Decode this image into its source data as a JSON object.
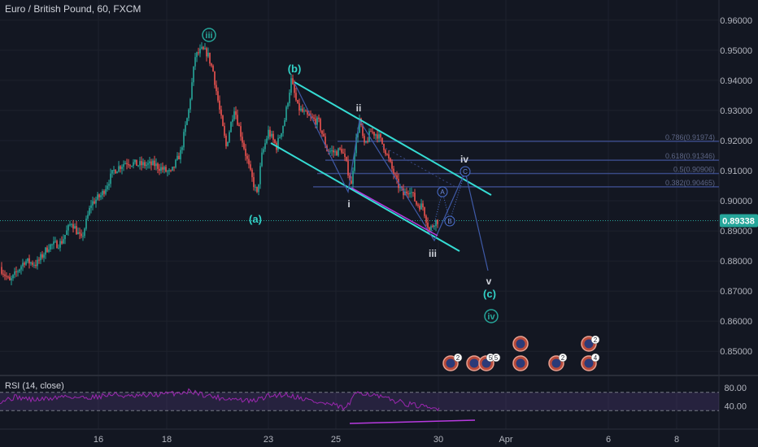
{
  "symbol_title": "Euro / British Pound, 60, FXCM",
  "rsi_title": "RSI (14, close)",
  "current_price": "0.89338",
  "colors": {
    "background": "#131722",
    "up": "#26a69a",
    "down": "#ef5350",
    "wave": "#32d3c8",
    "rsi": "#9c27b0",
    "fib": "#3a4a86",
    "price_label_bg": "#26a69a"
  },
  "wave_labels": [
    "iii",
    "(a)",
    "(b)",
    "ii",
    "i",
    "iii",
    "iv",
    "v",
    "(c)",
    "iv",
    "A",
    "B",
    "C"
  ],
  "fib_labels": [
    "0.786(0.91974)",
    "0.618(0.91346)",
    "0.5(0.90906)",
    "0.382(0.90465)"
  ],
  "event_counts": [
    "2",
    "5",
    "5",
    "2",
    "2",
    "4"
  ],
  "chart_data": {
    "type": "candlestick",
    "title": "Euro / British Pound, 60, FXCM",
    "y_ticks": [
      "0.96000",
      "0.95000",
      "0.94000",
      "0.93000",
      "0.92000",
      "0.91000",
      "0.90000",
      "0.89000",
      "0.88000",
      "0.87000",
      "0.86000",
      "0.85000"
    ],
    "x_ticks": [
      "16",
      "18",
      "23",
      "25",
      "30",
      "Apr",
      "6",
      "8"
    ],
    "rsi_ticks": [
      "80.00",
      "40.00"
    ],
    "ylim": [
      0.8425,
      0.964
    ],
    "last_price": 0.89338,
    "fib_levels": [
      0.91974,
      0.91346,
      0.90906,
      0.90465
    ],
    "price_path": [
      [
        0,
        0.878
      ],
      [
        12,
        0.873
      ],
      [
        30,
        0.88
      ],
      [
        45,
        0.879
      ],
      [
        60,
        0.885
      ],
      [
        75,
        0.886
      ],
      [
        88,
        0.893
      ],
      [
        100,
        0.887
      ],
      [
        112,
        0.899
      ],
      [
        125,
        0.902
      ],
      [
        140,
        0.91
      ],
      [
        155,
        0.913
      ],
      [
        170,
        0.912
      ],
      [
        190,
        0.912
      ],
      [
        210,
        0.909
      ],
      [
        222,
        0.916
      ],
      [
        232,
        0.93
      ],
      [
        240,
        0.948
      ],
      [
        248,
        0.95
      ],
      [
        255,
        0.949
      ],
      [
        262,
        0.943
      ],
      [
        270,
        0.93
      ],
      [
        278,
        0.918
      ],
      [
        288,
        0.931
      ],
      [
        298,
        0.92
      ],
      [
        308,
        0.909
      ],
      [
        316,
        0.902
      ],
      [
        322,
        0.915
      ],
      [
        330,
        0.923
      ],
      [
        340,
        0.918
      ],
      [
        350,
        0.927
      ],
      [
        358,
        0.94
      ],
      [
        366,
        0.931
      ],
      [
        378,
        0.928
      ],
      [
        392,
        0.926
      ],
      [
        402,
        0.917
      ],
      [
        412,
        0.916
      ],
      [
        420,
        0.917
      ],
      [
        426,
        0.912
      ],
      [
        432,
        0.905
      ],
      [
        436,
        0.917
      ],
      [
        442,
        0.927
      ],
      [
        448,
        0.918
      ],
      [
        456,
        0.923
      ],
      [
        464,
        0.922
      ],
      [
        472,
        0.918
      ],
      [
        480,
        0.912
      ],
      [
        488,
        0.906
      ],
      [
        496,
        0.902
      ],
      [
        504,
        0.904
      ],
      [
        512,
        0.899
      ],
      [
        520,
        0.898
      ],
      [
        528,
        0.89
      ],
      [
        534,
        0.893
      ],
      [
        538,
        0.8934
      ]
    ],
    "rsi_path": [
      [
        0,
        51
      ],
      [
        20,
        60
      ],
      [
        40,
        54
      ],
      [
        60,
        56
      ],
      [
        80,
        62
      ],
      [
        100,
        58
      ],
      [
        120,
        61
      ],
      [
        140,
        66
      ],
      [
        160,
        60
      ],
      [
        180,
        63
      ],
      [
        200,
        66
      ],
      [
        220,
        69
      ],
      [
        235,
        73
      ],
      [
        250,
        65
      ],
      [
        270,
        58
      ],
      [
        290,
        55
      ],
      [
        310,
        50
      ],
      [
        330,
        62
      ],
      [
        350,
        66
      ],
      [
        370,
        58
      ],
      [
        390,
        48
      ],
      [
        410,
        42
      ],
      [
        425,
        34
      ],
      [
        440,
        72
      ],
      [
        455,
        66
      ],
      [
        470,
        58
      ],
      [
        485,
        52
      ],
      [
        500,
        45
      ],
      [
        515,
        40
      ],
      [
        530,
        34
      ],
      [
        540,
        36
      ]
    ]
  }
}
